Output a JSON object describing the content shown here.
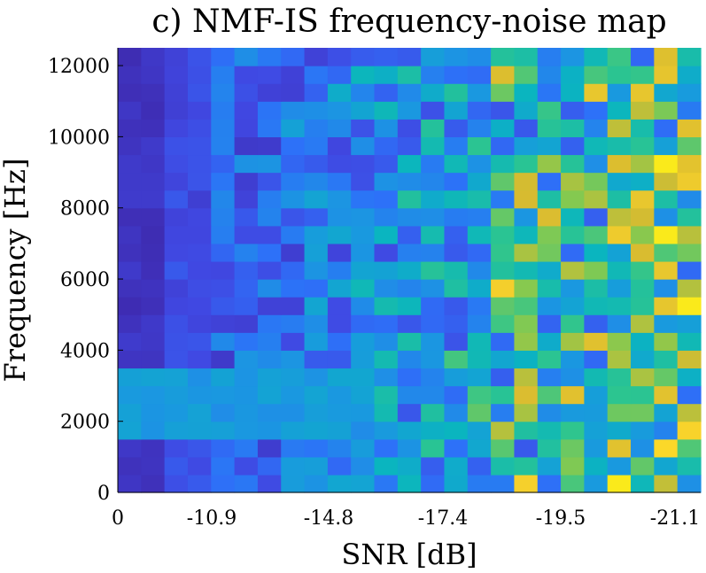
{
  "chart_data": {
    "type": "heatmap",
    "title": "c) NMF-IS frequency-noise map",
    "xlabel": "SNR [dB]",
    "ylabel": "Frequency [Hz]",
    "ylim": [
      0,
      12500
    ],
    "x_tick_labels": [
      "0",
      "-10.9",
      "-14.8",
      "-17.4",
      "-19.5",
      "-21.1"
    ],
    "y_ticks": [
      0,
      2000,
      4000,
      6000,
      8000,
      10000,
      12000
    ],
    "y_tick_labels": [
      "0",
      "2000",
      "4000",
      "6000",
      "8000",
      "10000",
      "12000"
    ],
    "num_columns": 25,
    "num_rows": 25,
    "colormap": [
      "#3e26a8",
      "#4048e2",
      "#2d71f8",
      "#1a98e0",
      "#0ab5bf",
      "#2cc590",
      "#86c94f",
      "#d8bb30",
      "#fbd52b",
      "#f9fb0e"
    ],
    "value_range": [
      0,
      1
    ],
    "grid": false,
    "values_description": "matrix values are normalized color intensity (0 = dark blue, 1 = yellow); rows ordered from lowest frequency to highest"
  }
}
